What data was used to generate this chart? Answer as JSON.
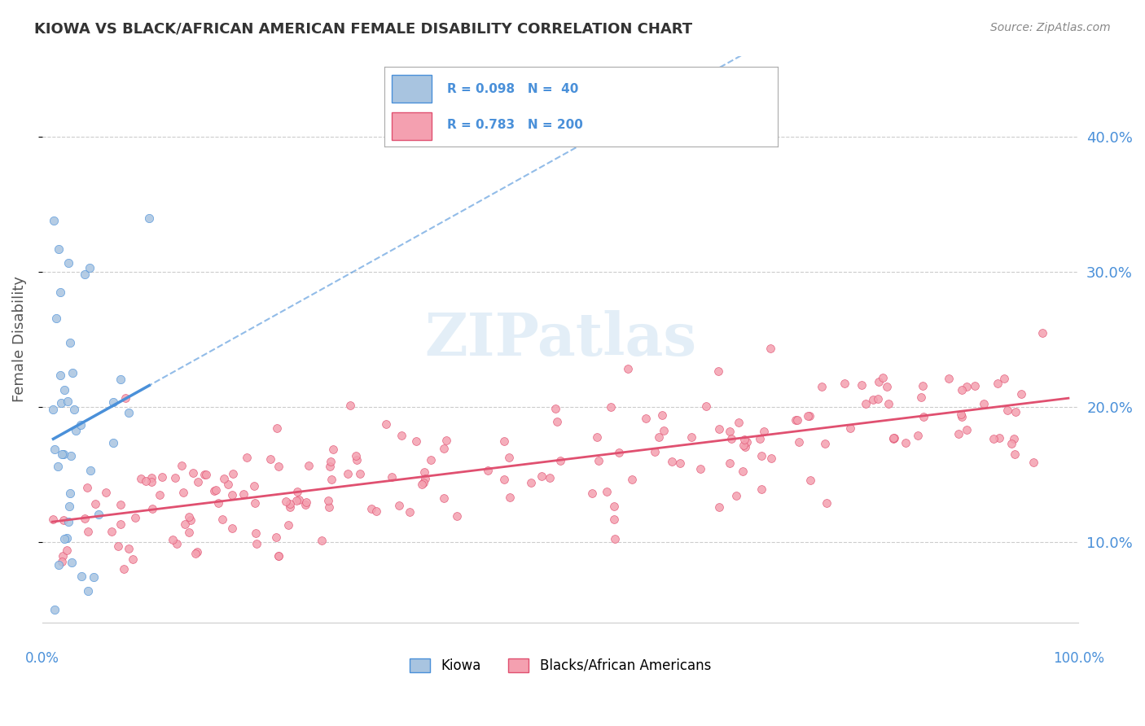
{
  "title": "KIOWA VS BLACK/AFRICAN AMERICAN FEMALE DISABILITY CORRELATION CHART",
  "source": "Source: ZipAtlas.com",
  "ylabel": "Female Disability",
  "y_tick_values": [
    0.1,
    0.2,
    0.3,
    0.4
  ],
  "y_tick_labels": [
    "10.0%",
    "20.0%",
    "30.0%",
    "40.0%"
  ],
  "kiowa_color": "#a8c4e0",
  "kiowa_line_color": "#4a90d9",
  "baa_color": "#f4a0b0",
  "baa_line_color": "#e05070",
  "watermark": "ZIPatlas",
  "background_color": "#ffffff",
  "grid_color": "#cccccc",
  "title_color": "#333333",
  "right_label_color": "#4a90d9",
  "legend_r1": "R = 0.098",
  "legend_n1": "N =  40",
  "legend_r2": "R = 0.783",
  "legend_n2": "N = 200",
  "xlim": [
    -0.01,
    1.01
  ],
  "ylim": [
    0.04,
    0.46
  ]
}
